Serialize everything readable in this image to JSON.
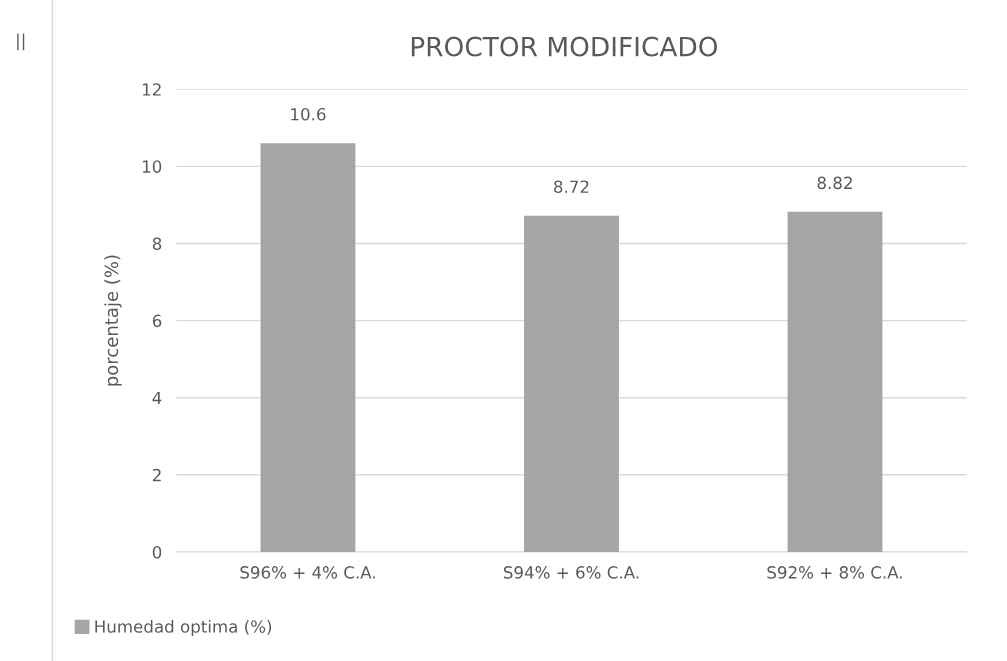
{
  "chart_data": {
    "type": "bar",
    "title": "PROCTOR MODIFICADO",
    "ylabel": "porcentaje (%)",
    "categories": [
      "S96% + 4% C.A.",
      "S94% + 6% C.A.",
      "S92% + 8% C.A."
    ],
    "series": [
      {
        "name": "Humedad optima (%)",
        "color": "#a5a5a5",
        "values": [
          10.6,
          8.72,
          8.82
        ]
      }
    ],
    "ylim": [
      0,
      12
    ],
    "yticks": [
      0,
      2,
      4,
      6,
      8,
      10,
      12
    ],
    "grid": "y",
    "legend": "bottom left",
    "data_labels": true,
    "annotations": [
      "||"
    ]
  }
}
